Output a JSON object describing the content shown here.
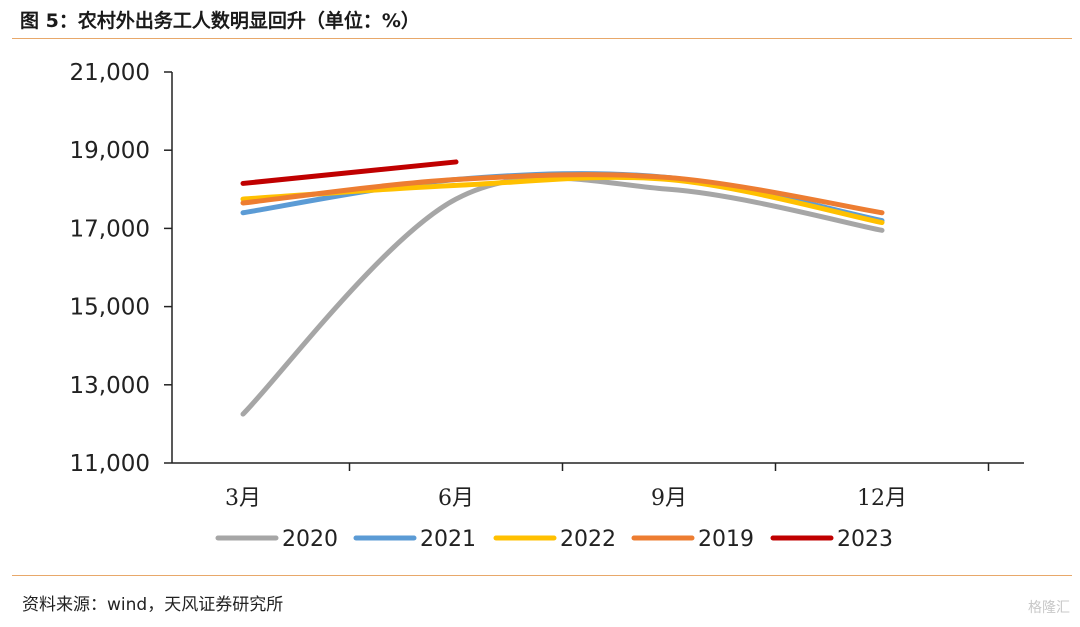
{
  "header": {
    "title": "图 5：农村外出务工人数明显回升（单位：%）"
  },
  "source": "资料来源：wind，天风证券研究所",
  "watermark": "格隆汇",
  "chart_data": {
    "type": "line",
    "x_ticks": [
      "3月",
      "6月",
      "9月",
      "12月"
    ],
    "y_ticks": [
      "21,000",
      "19,000",
      "17,000",
      "15,000",
      "13,000",
      "11,000"
    ],
    "ylim": [
      11000,
      21000
    ],
    "series": [
      {
        "name": "2020",
        "color": "#a6a6a6",
        "x": [
          3,
          6,
          9,
          12
        ],
        "values": [
          12250,
          17750,
          18000,
          16950
        ]
      },
      {
        "name": "2021",
        "color": "#5b9bd5",
        "x": [
          3,
          6,
          9,
          12
        ],
        "values": [
          17400,
          18250,
          18300,
          17200
        ]
      },
      {
        "name": "2022",
        "color": "#ffc000",
        "x": [
          3,
          6,
          9,
          12
        ],
        "values": [
          17750,
          18100,
          18250,
          17150
        ]
      },
      {
        "name": "2019",
        "color": "#ed7d31",
        "x": [
          3,
          6,
          9,
          12
        ],
        "values": [
          17650,
          18250,
          18300,
          17400
        ]
      },
      {
        "name": "2023",
        "color": "#c00000",
        "x": [
          3,
          6
        ],
        "values": [
          18150,
          18700
        ]
      }
    ],
    "legend_order": [
      "2020",
      "2021",
      "2022",
      "2019",
      "2023"
    ],
    "legend_position": "bottom",
    "grid": false
  }
}
